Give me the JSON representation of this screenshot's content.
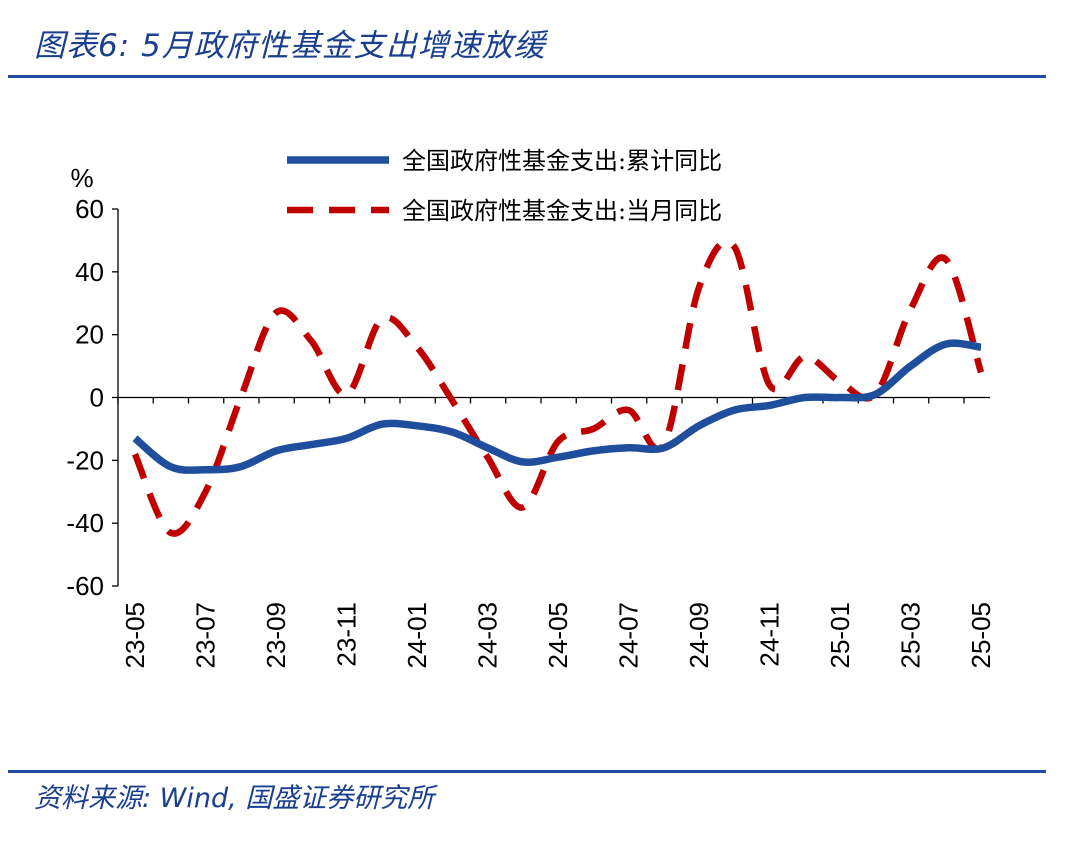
{
  "figure": {
    "title": "图表6:  5月政府性基金支出增速放缓",
    "source": "资料来源: Wind, 国盛证券研究所"
  },
  "chart_data": {
    "type": "line",
    "ylabel": "%",
    "ylim": [
      -60,
      60
    ],
    "yticks": [
      60,
      40,
      20,
      0,
      -20,
      -40,
      -60
    ],
    "x": [
      "23-05",
      "23-06",
      "23-07",
      "23-08",
      "23-09",
      "23-10",
      "23-11",
      "23-12",
      "24-01",
      "24-02",
      "24-03",
      "24-04",
      "24-05",
      "24-06",
      "24-07",
      "24-08",
      "24-09",
      "24-10",
      "24-11",
      "24-12",
      "25-01",
      "25-02",
      "25-03",
      "25-04",
      "25-05"
    ],
    "xtick_labels": [
      "23-05",
      "23-07",
      "23-09",
      "23-11",
      "24-01",
      "24-03",
      "24-05",
      "24-07",
      "24-09",
      "24-11",
      "25-01",
      "25-03",
      "25-05"
    ],
    "legend_position": "top-right",
    "grid": false,
    "series": [
      {
        "name": "全国政府性基金支出:累计同比",
        "color": "#1f4e9c",
        "style": "solid",
        "values": [
          -13,
          -22,
          -23,
          -22,
          -17,
          -15,
          -13,
          -8.5,
          -9,
          -11,
          -16,
          -20.5,
          -19,
          -17,
          -16,
          -16,
          -9,
          -4,
          -2.5,
          0,
          0,
          1,
          10,
          17,
          16
        ]
      },
      {
        "name": "全国政府性基金支出:当月同比",
        "color": "#c00000",
        "style": "dashed",
        "values": [
          -18,
          -43,
          -30,
          0,
          27,
          18,
          1,
          25,
          16,
          -1,
          -19,
          -35,
          -14,
          -10,
          -4,
          -15,
          35,
          48,
          4,
          13,
          5,
          1,
          28,
          44,
          8
        ]
      }
    ]
  }
}
